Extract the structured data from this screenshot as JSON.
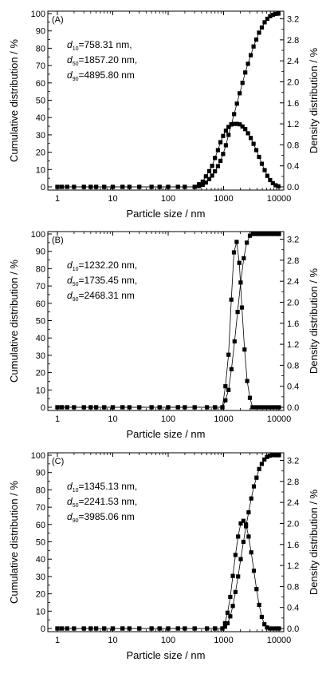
{
  "figure": {
    "xlabel": "Particle size / nm",
    "ylabel_left": "Cumulative distribution / %",
    "ylabel_right": "Density distribution / %",
    "x_ticks": [
      "1",
      "10",
      "100",
      "1000",
      "10000"
    ],
    "y_left_ticks": [
      "0",
      "10",
      "20",
      "30",
      "40",
      "50",
      "60",
      "70",
      "80",
      "90",
      "100"
    ],
    "y_right_ticks": [
      "0.0",
      "0.4",
      "0.8",
      "1.2",
      "1.6",
      "2.0",
      "2.4",
      "2.8",
      "3.2"
    ]
  },
  "chart_data": [
    {
      "type": "scatter",
      "panel_label": "(A)",
      "xlabel": "Particle size / nm",
      "ylabel": "Cumulative distribution / %",
      "ylabel_right": "Density distribution / %",
      "xscale": "log",
      "xlim": [
        1,
        10000
      ],
      "ylim": [
        0,
        100
      ],
      "ylim_right": [
        0,
        3.3
      ],
      "annotation": {
        "d10": "758.31 nm,",
        "d50": "1857.20 nm,",
        "d90": "4895.80 nm"
      },
      "series": [
        {
          "axis": "left",
          "points": [
            [
              1,
              0
            ],
            [
              1.2,
              0
            ],
            [
              1.5,
              0
            ],
            [
              2,
              0
            ],
            [
              3,
              0
            ],
            [
              4,
              0
            ],
            [
              5,
              0
            ],
            [
              7,
              0
            ],
            [
              10,
              0
            ],
            [
              15,
              0
            ],
            [
              20,
              0
            ],
            [
              30,
              0
            ],
            [
              50,
              0
            ],
            [
              70,
              0
            ],
            [
              100,
              0
            ],
            [
              150,
              0
            ],
            [
              200,
              0
            ],
            [
              300,
              0
            ],
            [
              360,
              0.4
            ],
            [
              420,
              1.2
            ],
            [
              480,
              2.5
            ],
            [
              550,
              4.5
            ],
            [
              620,
              6.5
            ],
            [
              700,
              9
            ],
            [
              790,
              12
            ],
            [
              880,
              15
            ],
            [
              980,
              19
            ],
            [
              1100,
              24
            ],
            [
              1230,
              30
            ],
            [
              1380,
              36
            ],
            [
              1550,
              42
            ],
            [
              1740,
              48
            ],
            [
              1950,
              54
            ],
            [
              2190,
              60
            ],
            [
              2460,
              66
            ],
            [
              2760,
              71
            ],
            [
              3090,
              76
            ],
            [
              3470,
              81
            ],
            [
              3890,
              85
            ],
            [
              4370,
              89
            ],
            [
              4900,
              92
            ],
            [
              5500,
              95
            ],
            [
              6170,
              97
            ],
            [
              6920,
              98.5
            ],
            [
              7760,
              99.3
            ],
            [
              8710,
              99.8
            ],
            [
              9770,
              100
            ]
          ]
        },
        {
          "axis": "right",
          "points": [
            [
              1,
              0
            ],
            [
              1.2,
              0
            ],
            [
              1.5,
              0
            ],
            [
              2,
              0
            ],
            [
              3,
              0
            ],
            [
              4,
              0
            ],
            [
              5,
              0
            ],
            [
              7,
              0
            ],
            [
              10,
              0
            ],
            [
              15,
              0
            ],
            [
              20,
              0
            ],
            [
              30,
              0
            ],
            [
              50,
              0
            ],
            [
              70,
              0
            ],
            [
              100,
              0
            ],
            [
              150,
              0
            ],
            [
              200,
              0
            ],
            [
              300,
              0
            ],
            [
              360,
              0.05
            ],
            [
              420,
              0.1
            ],
            [
              480,
              0.2
            ],
            [
              550,
              0.3
            ],
            [
              620,
              0.4
            ],
            [
              700,
              0.55
            ],
            [
              790,
              0.7
            ],
            [
              880,
              0.85
            ],
            [
              980,
              0.97
            ],
            [
              1100,
              1.07
            ],
            [
              1230,
              1.14
            ],
            [
              1380,
              1.19
            ],
            [
              1550,
              1.2
            ],
            [
              1740,
              1.2
            ],
            [
              1950,
              1.19
            ],
            [
              2190,
              1.15
            ],
            [
              2460,
              1.1
            ],
            [
              2760,
              1.02
            ],
            [
              3090,
              0.93
            ],
            [
              3470,
              0.82
            ],
            [
              3890,
              0.7
            ],
            [
              4370,
              0.57
            ],
            [
              4900,
              0.44
            ],
            [
              5500,
              0.32
            ],
            [
              6170,
              0.21
            ],
            [
              6920,
              0.13
            ],
            [
              7760,
              0.07
            ],
            [
              8710,
              0.03
            ],
            [
              9770,
              0.01
            ]
          ]
        }
      ]
    },
    {
      "type": "scatter",
      "panel_label": "(B)",
      "xlabel": "Particle size / nm",
      "ylabel": "Cumulative distribution / %",
      "ylabel_right": "Density distribution / %",
      "xscale": "log",
      "xlim": [
        1,
        10000
      ],
      "ylim": [
        0,
        100
      ],
      "ylim_right": [
        0,
        3.3
      ],
      "annotation": {
        "d10": "1232.20 nm,",
        "d50": "1735.45 nm,",
        "d90": "2468.31 nm"
      },
      "series": [
        {
          "axis": "left",
          "points": [
            [
              1,
              0
            ],
            [
              1.2,
              0
            ],
            [
              1.5,
              0
            ],
            [
              2,
              0
            ],
            [
              3,
              0
            ],
            [
              4,
              0
            ],
            [
              5,
              0
            ],
            [
              7,
              0
            ],
            [
              10,
              0
            ],
            [
              15,
              0
            ],
            [
              20,
              0
            ],
            [
              30,
              0
            ],
            [
              50,
              0
            ],
            [
              70,
              0
            ],
            [
              100,
              0
            ],
            [
              150,
              0
            ],
            [
              200,
              0
            ],
            [
              300,
              0
            ],
            [
              500,
              0
            ],
            [
              700,
              0
            ],
            [
              950,
              0
            ],
            [
              1080,
              4
            ],
            [
              1230,
              10
            ],
            [
              1390,
              22
            ],
            [
              1580,
              38
            ],
            [
              1790,
              55
            ],
            [
              2030,
              72
            ],
            [
              2310,
              86
            ],
            [
              2620,
              95
            ],
            [
              2980,
              99
            ],
            [
              3380,
              100
            ],
            [
              3840,
              100
            ],
            [
              4360,
              100
            ],
            [
              4950,
              100
            ],
            [
              5620,
              100
            ],
            [
              6380,
              100
            ],
            [
              7240,
              100
            ],
            [
              8220,
              100
            ],
            [
              9330,
              100
            ],
            [
              10000,
              100
            ]
          ]
        },
        {
          "axis": "right",
          "points": [
            [
              1,
              0
            ],
            [
              1.2,
              0
            ],
            [
              1.5,
              0
            ],
            [
              2,
              0
            ],
            [
              3,
              0
            ],
            [
              4,
              0
            ],
            [
              5,
              0
            ],
            [
              7,
              0
            ],
            [
              10,
              0
            ],
            [
              15,
              0
            ],
            [
              20,
              0
            ],
            [
              30,
              0
            ],
            [
              50,
              0
            ],
            [
              70,
              0
            ],
            [
              100,
              0
            ],
            [
              150,
              0
            ],
            [
              200,
              0
            ],
            [
              300,
              0
            ],
            [
              500,
              0
            ],
            [
              700,
              0
            ],
            [
              950,
              0
            ],
            [
              1080,
              0.4
            ],
            [
              1230,
              1.0
            ],
            [
              1380,
              2.05
            ],
            [
              1540,
              2.95
            ],
            [
              1720,
              3.15
            ],
            [
              1920,
              2.75
            ],
            [
              2140,
              1.9
            ],
            [
              2390,
              1.1
            ],
            [
              2670,
              0.5
            ],
            [
              2980,
              0.18
            ],
            [
              3340,
              0
            ],
            [
              3840,
              0
            ],
            [
              4360,
              0
            ],
            [
              4950,
              0
            ],
            [
              5620,
              0
            ],
            [
              6380,
              0
            ],
            [
              7240,
              0
            ],
            [
              8220,
              0
            ],
            [
              9330,
              0
            ],
            [
              10000,
              0
            ]
          ]
        }
      ]
    },
    {
      "type": "scatter",
      "panel_label": "(C)",
      "xlabel": "Particle size / nm",
      "ylabel": "Cumulative distribution / %",
      "ylabel_right": "Density distribution / %",
      "xscale": "log",
      "xlim": [
        1,
        10000
      ],
      "ylim": [
        0,
        100
      ],
      "ylim_right": [
        0,
        3.3
      ],
      "annotation": {
        "d10": "1345.13 nm,",
        "d50": "2241.53 nm,",
        "d90": "3985.06 nm"
      },
      "series": [
        {
          "axis": "left",
          "points": [
            [
              1,
              0
            ],
            [
              1.2,
              0
            ],
            [
              1.5,
              0
            ],
            [
              2,
              0
            ],
            [
              3,
              0
            ],
            [
              4,
              0
            ],
            [
              5,
              0
            ],
            [
              7,
              0
            ],
            [
              10,
              0
            ],
            [
              15,
              0
            ],
            [
              20,
              0
            ],
            [
              30,
              0
            ],
            [
              50,
              0
            ],
            [
              70,
              0
            ],
            [
              100,
              0
            ],
            [
              150,
              0
            ],
            [
              200,
              0
            ],
            [
              300,
              0
            ],
            [
              500,
              0
            ],
            [
              700,
              0
            ],
            [
              950,
              0
            ],
            [
              1060,
              1
            ],
            [
              1180,
              3
            ],
            [
              1320,
              7
            ],
            [
              1470,
              13
            ],
            [
              1640,
              21
            ],
            [
              1830,
              30
            ],
            [
              2040,
              40
            ],
            [
              2280,
              50
            ],
            [
              2540,
              59
            ],
            [
              2830,
              67
            ],
            [
              3160,
              75
            ],
            [
              3520,
              82
            ],
            [
              3930,
              87
            ],
            [
              4380,
              92
            ],
            [
              4890,
              95
            ],
            [
              5450,
              97.5
            ],
            [
              6080,
              99
            ],
            [
              6780,
              99.7
            ],
            [
              7570,
              100
            ],
            [
              8440,
              100
            ],
            [
              9420,
              100
            ],
            [
              10000,
              100
            ]
          ]
        },
        {
          "axis": "right",
          "points": [
            [
              1,
              0
            ],
            [
              1.2,
              0
            ],
            [
              1.5,
              0
            ],
            [
              2,
              0
            ],
            [
              3,
              0
            ],
            [
              4,
              0
            ],
            [
              5,
              0
            ],
            [
              7,
              0
            ],
            [
              10,
              0
            ],
            [
              15,
              0
            ],
            [
              20,
              0
            ],
            [
              30,
              0
            ],
            [
              50,
              0
            ],
            [
              70,
              0
            ],
            [
              100,
              0
            ],
            [
              150,
              0
            ],
            [
              200,
              0
            ],
            [
              300,
              0
            ],
            [
              500,
              0
            ],
            [
              700,
              0
            ],
            [
              950,
              0
            ],
            [
              1060,
              0.1
            ],
            [
              1180,
              0.3
            ],
            [
              1320,
              0.6
            ],
            [
              1470,
              1.0
            ],
            [
              1640,
              1.4
            ],
            [
              1830,
              1.75
            ],
            [
              2040,
              2.0
            ],
            [
              2280,
              2.05
            ],
            [
              2540,
              1.98
            ],
            [
              2830,
              1.75
            ],
            [
              3160,
              1.45
            ],
            [
              3520,
              1.1
            ],
            [
              3930,
              0.75
            ],
            [
              4380,
              0.45
            ],
            [
              4890,
              0.22
            ],
            [
              5450,
              0.08
            ],
            [
              6080,
              0.02
            ],
            [
              6780,
              0
            ],
            [
              7570,
              0
            ],
            [
              8440,
              0
            ],
            [
              9420,
              0
            ],
            [
              10000,
              0
            ]
          ]
        }
      ]
    }
  ]
}
